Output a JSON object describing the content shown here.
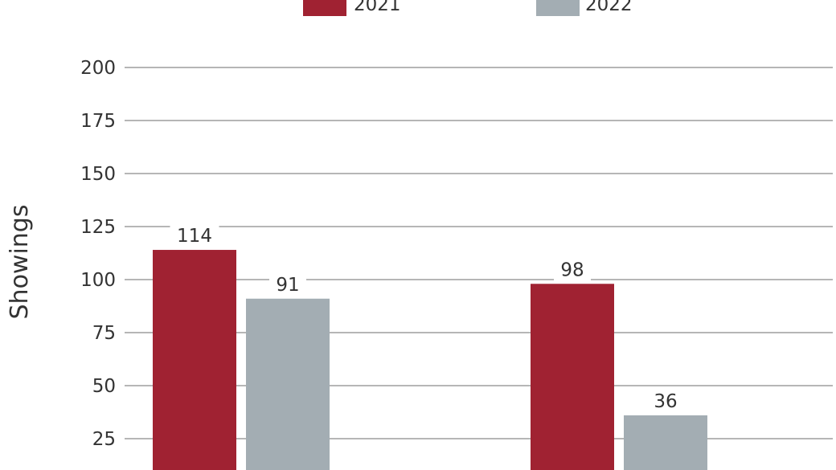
{
  "chart_data": {
    "type": "bar",
    "categories": [
      "",
      ""
    ],
    "series": [
      {
        "name": "2021",
        "values": [
          114,
          98
        ],
        "color": "#a02232"
      },
      {
        "name": "2022",
        "values": [
          91,
          36
        ],
        "color": "#a3adb3"
      }
    ],
    "ylabel": "Showings",
    "yticks": [
      25,
      50,
      75,
      100,
      125,
      150,
      175,
      200
    ],
    "ylim": [
      0,
      200
    ],
    "grid": true,
    "legend": "top-center"
  }
}
